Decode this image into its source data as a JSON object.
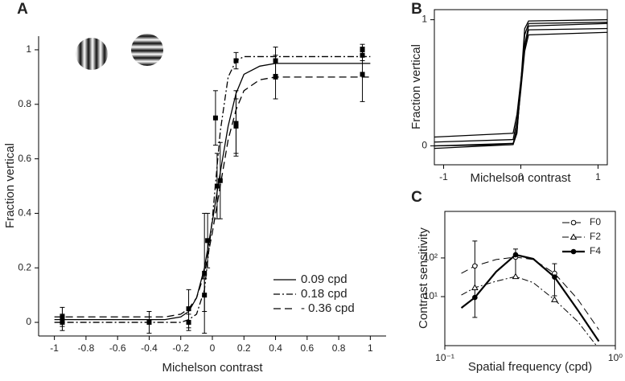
{
  "chart_data": [
    {
      "type": "line",
      "label": "A",
      "xlabel": "Michelson contrast",
      "ylabel": "Fraction vertical",
      "xlim": [
        -1.1,
        1.1
      ],
      "ylim": [
        -0.05,
        1.05
      ],
      "xticks": [
        -1,
        -0.8,
        -0.6,
        -0.4,
        -0.2,
        0,
        0.2,
        0.4,
        0.6,
        0.8,
        1
      ],
      "yticks": [
        0,
        0.2,
        0.4,
        0.6,
        0.8,
        1
      ],
      "frame": false,
      "legend": "lower right",
      "x": [
        -1,
        -0.3,
        -0.2,
        -0.15,
        -0.1,
        -0.05,
        0,
        0.05,
        0.1,
        0.15,
        0.2,
        0.3,
        0.4,
        1
      ],
      "series": [
        {
          "name": "0.09 cpd",
          "color": "#000000",
          "dash": "solid",
          "values": [
            0.01,
            0.01,
            0.02,
            0.04,
            0.09,
            0.2,
            0.37,
            0.55,
            0.72,
            0.84,
            0.91,
            0.94,
            0.95,
            0.95
          ]
        },
        {
          "name": "0.18 cpd",
          "color": "#000000",
          "dash": "dashdot",
          "values": [
            0,
            0,
            0,
            0.01,
            0.03,
            0.12,
            0.38,
            0.7,
            0.9,
            0.96,
            0.975,
            0.975,
            0.975,
            0.975
          ]
        },
        {
          "name": "- 0.36 cpd",
          "color": "#000000",
          "dash": "dash",
          "values": [
            0.02,
            0.02,
            0.03,
            0.05,
            0.09,
            0.18,
            0.33,
            0.5,
            0.67,
            0.78,
            0.85,
            0.89,
            0.9,
            0.9
          ]
        }
      ],
      "points": {
        "color": "#000000",
        "x": [
          -0.95,
          -0.95,
          -0.4,
          -0.15,
          -0.15,
          -0.05,
          -0.05,
          -0.03,
          0.02,
          0.03,
          0.05,
          0.15,
          0.15,
          0.15,
          0.4,
          0.4,
          0.95,
          0.95,
          0.95
        ],
        "y": [
          0,
          0.02,
          0,
          0,
          0.05,
          0.1,
          0.18,
          0.3,
          0.75,
          0.5,
          0.52,
          0.72,
          0.96,
          0.73,
          0.9,
          0.96,
          0.98,
          0.91,
          1
        ],
        "err": [
          0.03,
          0.035,
          0.04,
          0.03,
          0.07,
          0.06,
          0.22,
          0.1,
          0.1,
          0.12,
          0.14,
          0.1,
          0.03,
          0.12,
          0.08,
          0.05,
          0.02,
          0.1,
          0.02
        ]
      }
    },
    {
      "type": "line",
      "label": "B",
      "xlabel": "Michelson contrast",
      "ylabel": "Fraction vertical",
      "xlim": [
        -1.12,
        1.12
      ],
      "ylim": [
        -0.15,
        1.08
      ],
      "xticks": [
        -1,
        0,
        1
      ],
      "yticks": [
        0,
        1
      ],
      "frame": true,
      "x": [
        -1.12,
        -0.1,
        -0.05,
        0,
        0.05,
        0.1,
        1.12
      ],
      "series": [
        {
          "color": "#000000",
          "dash": "solid",
          "values": [
            0.07,
            0.1,
            0.25,
            0.52,
            0.8,
            0.95,
            0.97
          ]
        },
        {
          "color": "#000000",
          "dash": "solid",
          "values": [
            0.03,
            0.05,
            0.2,
            0.48,
            0.78,
            0.92,
            0.93
          ]
        },
        {
          "color": "#000000",
          "dash": "solid",
          "values": [
            0,
            0.01,
            0.1,
            0.5,
            0.93,
            0.99,
            1
          ]
        },
        {
          "color": "#000000",
          "dash": "solid",
          "values": [
            -0.02,
            0.01,
            0.15,
            0.44,
            0.75,
            0.88,
            0.9
          ]
        },
        {
          "color": "#000000",
          "dash": "solid",
          "values": [
            0,
            0.02,
            0.12,
            0.47,
            0.88,
            0.97,
            0.98
          ]
        }
      ]
    },
    {
      "type": "line",
      "label": "C",
      "xlabel": "Spatial frequency (cpd)",
      "ylabel": "Contrast sensitivity",
      "xlog": true,
      "ylog": true,
      "xlim": [
        0.1,
        1
      ],
      "ylim": [
        0.54,
        1600
      ],
      "xticks": [
        {
          "value": 0.1,
          "label": "10⁻¹"
        },
        {
          "value": 1,
          "label": "10⁰"
        }
      ],
      "yticks": [
        {
          "value": 10,
          "label": "10¹"
        },
        {
          "value": 100,
          "label": "10²"
        }
      ],
      "frame": true,
      "legend": "upper right",
      "x": [
        0.125,
        0.15,
        0.2,
        0.26,
        0.33,
        0.44,
        0.6,
        0.8
      ],
      "series": [
        {
          "name": "F0",
          "color": "#000000",
          "dash": "dash",
          "width": 1,
          "marker": "circle-open",
          "values": [
            40,
            62,
            91,
            105,
            91,
            40,
            8.7,
            1.4
          ],
          "points": {
            "x": [
              0.15,
              0.26,
              0.44
            ],
            "y": [
              62,
              105,
              40
            ],
            "low": [
              2.9,
              32,
              10.5
            ],
            "high": [
              274,
              170,
              71
            ]
          }
        },
        {
          "name": "F2",
          "color": "#000000",
          "dash": "dashdot",
          "width": 1,
          "marker": "triangle-open",
          "values": [
            11,
            17,
            25,
            33,
            23,
            8.3,
            2.3,
            0.45
          ],
          "points": {
            "x": [
              0.15,
              0.26,
              0.44
            ],
            "y": [
              17,
              33,
              8.3
            ]
          }
        },
        {
          "name": "F4",
          "color": "#000000",
          "dash": "solid",
          "width": 2.2,
          "marker": "circle-filled",
          "values": [
            5.1,
            9.5,
            44,
            121,
            95,
            32,
            4.6,
            0.7
          ],
          "points": {
            "x": [
              0.15,
              0.26,
              0.44
            ],
            "y": [
              9.5,
              121,
              32
            ]
          }
        }
      ]
    }
  ]
}
